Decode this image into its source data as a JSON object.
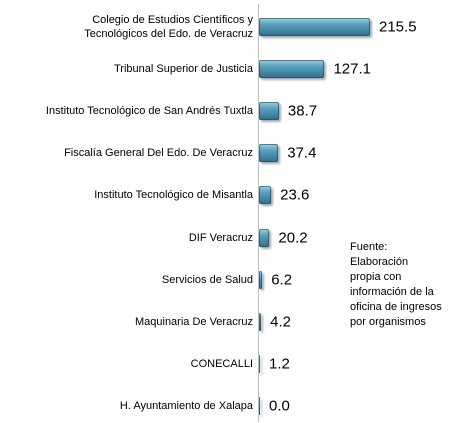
{
  "chart_data": {
    "type": "bar",
    "orientation": "horizontal",
    "categories": [
      "Colegio de Estudios Científicos y\nTecnológicos del Edo. de Veracruz",
      "Tribunal Superior de Justicia",
      "Instituto Tecnológico de San Andrés Tuxtla",
      "Fiscalía General Del Edo. De Veracruz",
      "Instituto Tecnológico de Misantla",
      "DIF Veracruz",
      "Servicios de Salud",
      "Maquinaria De Veracruz",
      "CONECALLI",
      "H. Ayuntamiento de Xalapa"
    ],
    "values": [
      215.5,
      127.1,
      38.7,
      37.4,
      23.6,
      20.2,
      6.2,
      4.2,
      1.2,
      0
    ],
    "value_labels": [
      "215.5",
      "127.1",
      "38.7",
      "37.4",
      "23.6",
      "20.2",
      "6.2",
      "4.2",
      "1.2",
      "0.0"
    ],
    "color": "#4f93b0",
    "annotation": [
      "Fuente:",
      "Elaboración",
      "propia con",
      "información de la",
      "oficina de ingresos",
      "por organismos"
    ]
  }
}
